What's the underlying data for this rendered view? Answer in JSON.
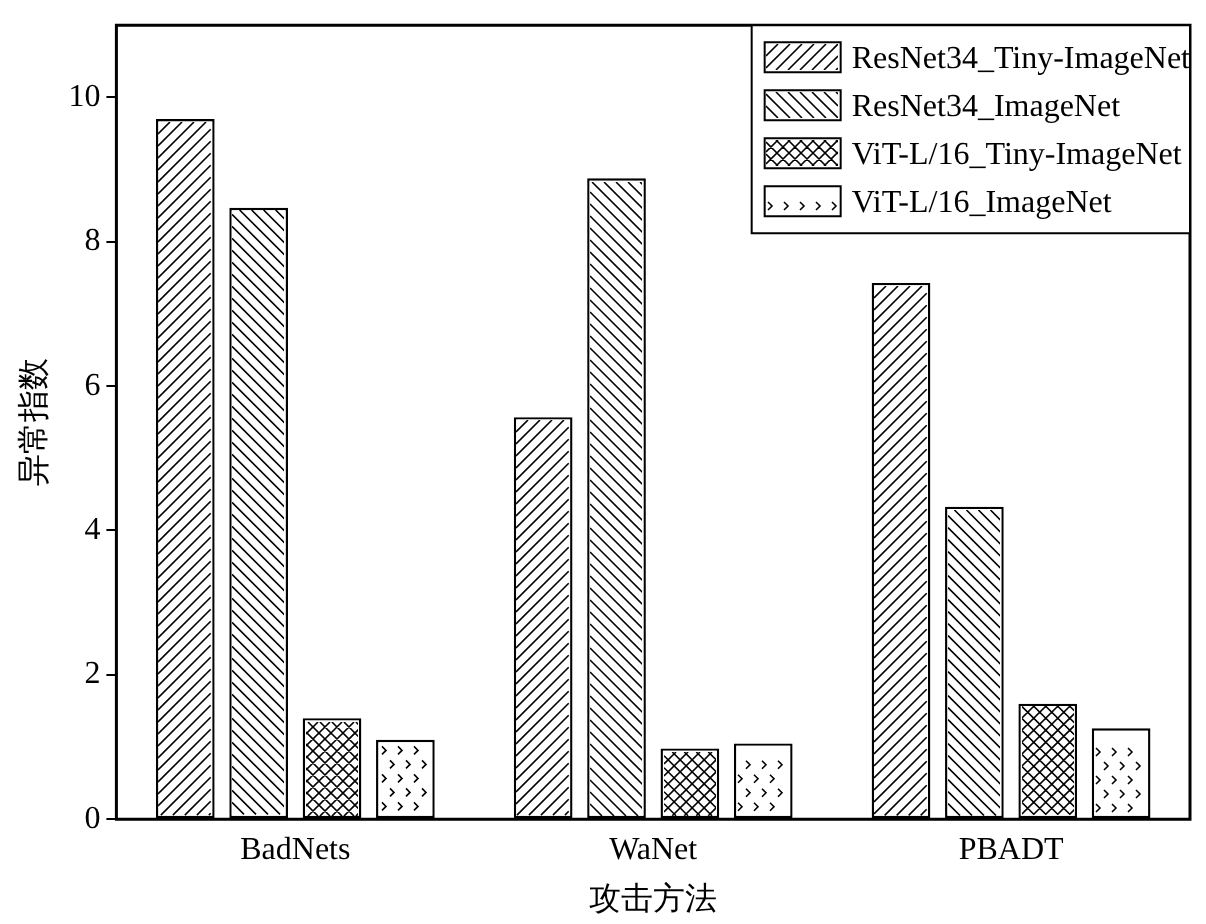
{
  "chart_data": {
    "type": "bar",
    "xlabel": "攻击方法",
    "ylabel": "异常指数",
    "categories": [
      "BadNets",
      "WaNet",
      "PBADT"
    ],
    "series": [
      {
        "name": "ResNet34_Tiny-ImageNet",
        "color": "#ffffff",
        "values": [
          9.7,
          5.57,
          7.43
        ]
      },
      {
        "name": "ResNet34_ImageNet",
        "color": "#ffffff",
        "values": [
          8.47,
          8.88,
          4.33
        ]
      },
      {
        "name": "ViT-L/16_Tiny-ImageNet",
        "color": "#ffffff",
        "values": [
          1.4,
          0.98,
          1.6
        ]
      },
      {
        "name": "ViT-L/16_ImageNet",
        "color": "#ffffff",
        "values": [
          1.1,
          1.05,
          1.26
        ]
      }
    ],
    "ylim": [
      0,
      11
    ],
    "yticks": [
      0,
      2,
      4,
      6,
      8,
      10
    ],
    "grid": false,
    "legend": "top right"
  }
}
